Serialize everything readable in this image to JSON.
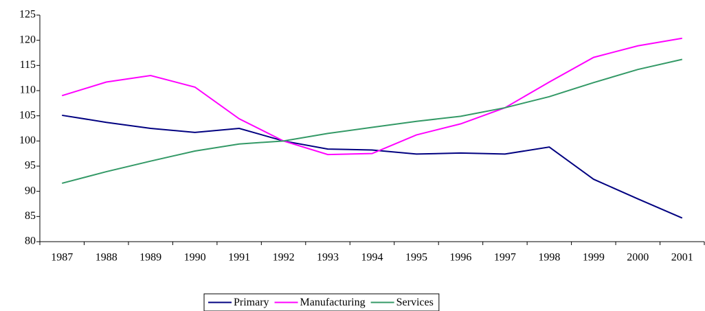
{
  "chart_data": {
    "type": "line",
    "categories": [
      "1987",
      "1988",
      "1989",
      "1990",
      "1991",
      "1992",
      "1993",
      "1994",
      "1995",
      "1996",
      "1997",
      "1998",
      "1999",
      "2000",
      "2001"
    ],
    "series": [
      {
        "name": "Primary",
        "color": "#000080",
        "values": [
          105.1,
          103.7,
          102.5,
          101.7,
          102.5,
          100,
          98.4,
          98.2,
          97.4,
          97.6,
          97.4,
          98.8,
          92.4,
          88.5,
          84.7
        ]
      },
      {
        "name": "Manufacturing",
        "color": "#ff00ff",
        "values": [
          109,
          111.7,
          113,
          110.7,
          104.4,
          100,
          97.3,
          97.5,
          101.2,
          103.4,
          106.6,
          111.7,
          116.6,
          118.9,
          120.4
        ]
      },
      {
        "name": "Services",
        "color": "#339966",
        "values": [
          91.6,
          93.9,
          96,
          98,
          99.4,
          100,
          101.5,
          102.7,
          103.9,
          104.9,
          106.6,
          108.8,
          111.6,
          114.2,
          116.2
        ]
      }
    ],
    "ylim": [
      80,
      125
    ],
    "yticks": [
      80,
      85,
      90,
      95,
      100,
      105,
      110,
      115,
      120,
      125
    ],
    "grid": false,
    "legend": "bottom"
  }
}
